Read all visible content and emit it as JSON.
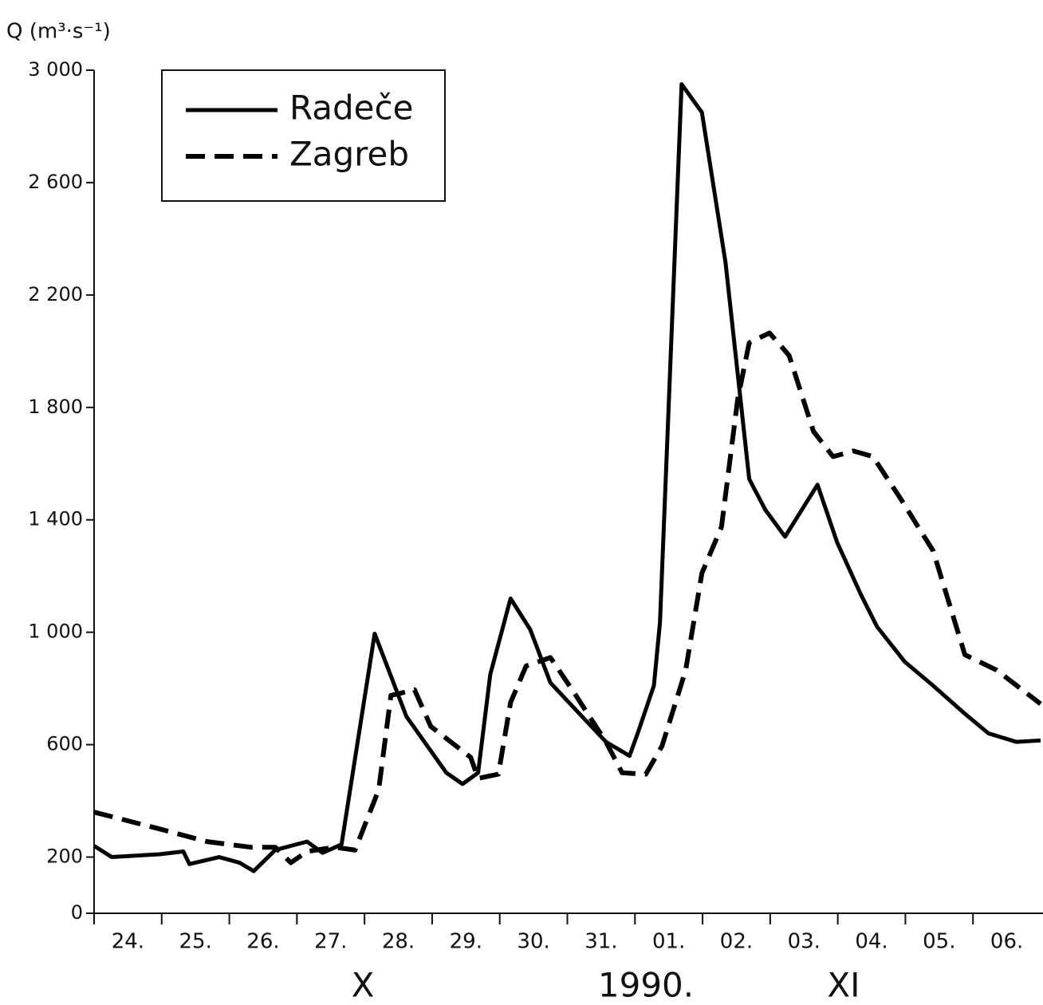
{
  "chart_data": {
    "type": "line",
    "y_label": "Q (m³·s⁻¹)",
    "x_annotations": [
      "X",
      "1990.",
      "XI"
    ],
    "xlim": [
      0,
      14
    ],
    "xticks": [
      {
        "value": 0,
        "label": "24."
      },
      {
        "value": 1,
        "label": "25."
      },
      {
        "value": 2,
        "label": "26."
      },
      {
        "value": 3,
        "label": "27."
      },
      {
        "value": 4,
        "label": "28."
      },
      {
        "value": 5,
        "label": "29."
      },
      {
        "value": 6,
        "label": "30."
      },
      {
        "value": 7,
        "label": "31."
      },
      {
        "value": 8,
        "label": "01."
      },
      {
        "value": 9,
        "label": "02."
      },
      {
        "value": 10,
        "label": "03."
      },
      {
        "value": 11,
        "label": "04."
      },
      {
        "value": 12,
        "label": "05."
      },
      {
        "value": 13,
        "label": "06."
      }
    ],
    "ylim": [
      0,
      3000
    ],
    "yticks": [
      0,
      200,
      600,
      {
        "value": 1000,
        "label": "1 000"
      },
      {
        "value": 1400,
        "label": "1 400"
      },
      {
        "value": 1800,
        "label": "1 800"
      },
      {
        "value": 2200,
        "label": "2 200"
      },
      {
        "value": 2600,
        "label": "2 600"
      },
      {
        "value": 3000,
        "label": "3 000"
      }
    ],
    "legend": "top-left",
    "series": [
      {
        "name": "Radeče",
        "color": "#000000",
        "style": "solid",
        "x": [
          0,
          0.26,
          0.97,
          1.32,
          1.41,
          1.85,
          2.15,
          2.36,
          2.68,
          3.15,
          3.38,
          3.66,
          4.15,
          4.62,
          5.21,
          5.45,
          5.68,
          5.86,
          6.16,
          6.45,
          6.75,
          7.57,
          7.92,
          8.04,
          8.28,
          8.37,
          8.69,
          8.99,
          9.34,
          9.69,
          9.93,
          10.22,
          10.7,
          10.99,
          11.34,
          11.58,
          11.99,
          12.41,
          12.88,
          13.23,
          13.64,
          14
        ],
        "values": [
          240,
          200,
          210,
          220,
          175,
          200,
          180,
          150,
          225,
          255,
          215,
          245,
          995,
          700,
          500,
          460,
          500,
          850,
          1120,
          1010,
          820,
          610,
          560,
          640,
          810,
          1035,
          2950,
          2850,
          2315,
          1545,
          1435,
          1340,
          1525,
          1320,
          1135,
          1020,
          895,
          810,
          710,
          640,
          610,
          615
        ]
      },
      {
        "name": "Zagreb",
        "color": "#000000",
        "style": "dashed",
        "x": [
          0,
          0.97,
          1.67,
          2.32,
          2.68,
          2.91,
          3.15,
          3.56,
          3.86,
          4.21,
          4.39,
          4.74,
          4.98,
          5.57,
          5.68,
          5.98,
          6.16,
          6.39,
          6.75,
          7.1,
          7.57,
          7.81,
          8.16,
          8.4,
          8.75,
          8.99,
          9.28,
          9.52,
          9.69,
          9.99,
          10.28,
          10.64,
          10.93,
          11.23,
          11.52,
          11.93,
          12.41,
          12.88,
          13.35,
          14
        ],
        "values": [
          360,
          300,
          255,
          235,
          235,
          180,
          220,
          235,
          225,
          440,
          775,
          795,
          665,
          555,
          480,
          495,
          750,
          880,
          910,
          785,
          610,
          500,
          495,
          595,
          865,
          1210,
          1375,
          1830,
          2030,
          2065,
          1985,
          1715,
          1625,
          1645,
          1625,
          1475,
          1290,
          920,
          865,
          745
        ]
      }
    ]
  }
}
